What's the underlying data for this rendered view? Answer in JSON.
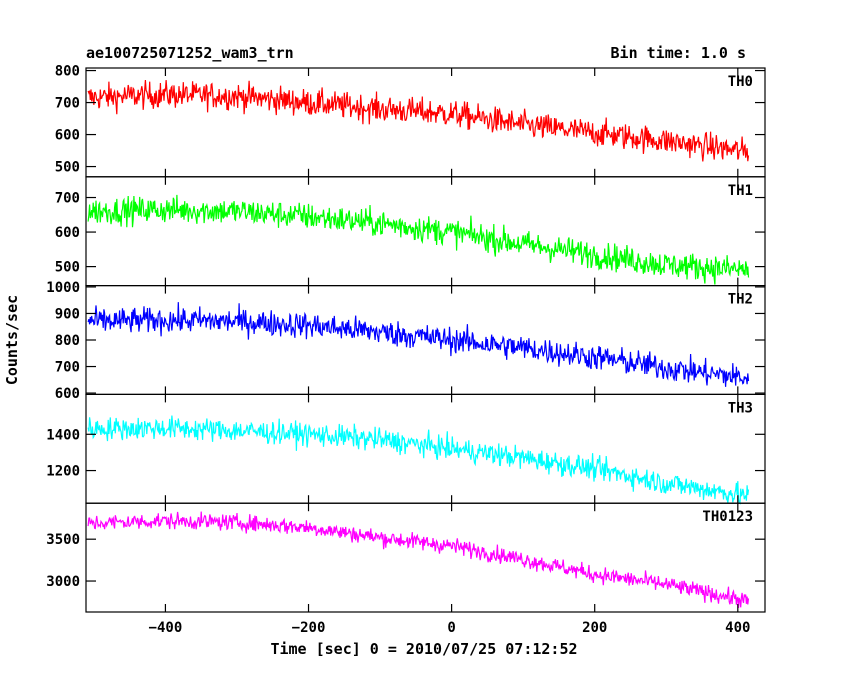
{
  "chart_data": {
    "type": "line",
    "title": "ae100725071252_wam3_trn",
    "subtitle": "Bin time: 1.0 s",
    "xlabel": "Time [sec] 0 = 2010/07/25 07:12:52",
    "ylabel": "Counts/sec",
    "xlim": [
      -511,
      438
    ],
    "x_ticks": [
      -400,
      -200,
      0,
      200,
      400
    ],
    "x_tick_labels": [
      "−400",
      "−200",
      "0",
      "200",
      "400"
    ],
    "data_xrange": [
      -508,
      415
    ],
    "grid": false,
    "panels": [
      {
        "name": "TH0",
        "color": "#ff0000",
        "ylim": [
          468,
          808
        ],
        "y_ticks": [
          500,
          600,
          700,
          800
        ],
        "trend_x": [
          -508,
          -400,
          -300,
          -200,
          -100,
          0,
          100,
          200,
          300,
          415
        ],
        "trend_y": [
          715,
          725,
          720,
          700,
          680,
          665,
          630,
          605,
          580,
          545
        ],
        "noise": 30
      },
      {
        "name": "TH1",
        "color": "#00ff00",
        "ylim": [
          445,
          760
        ],
        "y_ticks": [
          500,
          600,
          700
        ],
        "trend_x": [
          -508,
          -400,
          -300,
          -200,
          -100,
          0,
          100,
          200,
          300,
          415
        ],
        "trend_y": [
          660,
          665,
          660,
          645,
          625,
          600,
          565,
          535,
          505,
          490
        ],
        "noise": 28
      },
      {
        "name": "TH2",
        "color": "#0000ff",
        "ylim": [
          595,
          1005
        ],
        "y_ticks": [
          600,
          700,
          800,
          900,
          1000
        ],
        "trend_x": [
          -508,
          -400,
          -300,
          -200,
          -100,
          0,
          100,
          200,
          300,
          415
        ],
        "trend_y": [
          870,
          875,
          870,
          855,
          830,
          800,
          770,
          735,
          695,
          655
        ],
        "noise": 35
      },
      {
        "name": "TH3",
        "color": "#00ffff",
        "ylim": [
          1020,
          1620
        ],
        "y_ticks": [
          1200,
          1400
        ],
        "trend_x": [
          -508,
          -400,
          -300,
          -200,
          -100,
          0,
          100,
          200,
          300,
          415
        ],
        "trend_y": [
          1430,
          1435,
          1420,
          1400,
          1370,
          1320,
          1270,
          1210,
          1130,
          1060
        ],
        "noise": 45
      },
      {
        "name": "TH0123",
        "color": "#ff00ff",
        "ylim": [
          2630,
          3930
        ],
        "y_ticks": [
          3000,
          3500
        ],
        "trend_x": [
          -508,
          -400,
          -300,
          -200,
          -100,
          0,
          100,
          200,
          300,
          415
        ],
        "trend_y": [
          3690,
          3720,
          3700,
          3640,
          3520,
          3420,
          3260,
          3080,
          2960,
          2760
        ],
        "noise": 70
      }
    ]
  }
}
